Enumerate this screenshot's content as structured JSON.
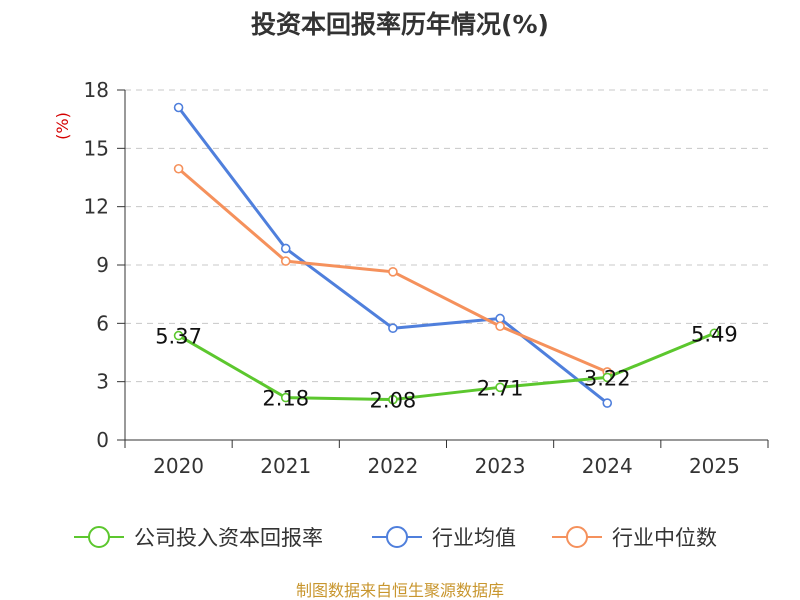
{
  "chart_data": {
    "type": "line",
    "title": "投资本回报率历年情况(%)",
    "ylabel": "(%)",
    "xlabel": "",
    "categories": [
      "2020",
      "2021",
      "2022",
      "2023",
      "2024",
      "2025"
    ],
    "ylim": [
      0,
      18
    ],
    "yticks": [
      0,
      3,
      6,
      9,
      12,
      15,
      18
    ],
    "grid": true,
    "legend_position": "bottom",
    "series": [
      {
        "name": "公司投入资本回报率",
        "color": "#5cc72e",
        "values": [
          5.37,
          2.18,
          2.08,
          2.71,
          3.22,
          5.49
        ],
        "labels": [
          "5.37",
          "2.18",
          "2.08",
          "2.71",
          "3.22",
          "5.49"
        ]
      },
      {
        "name": "行业均值",
        "color": "#4f7fdc",
        "values": [
          17.1,
          9.85,
          5.75,
          6.25,
          1.9,
          null
        ]
      },
      {
        "name": "行业中位数",
        "color": "#f5915c",
        "values": [
          13.95,
          9.2,
          8.65,
          5.85,
          3.5,
          null
        ]
      }
    ],
    "source": "制图数据来自恒生聚源数据库"
  }
}
